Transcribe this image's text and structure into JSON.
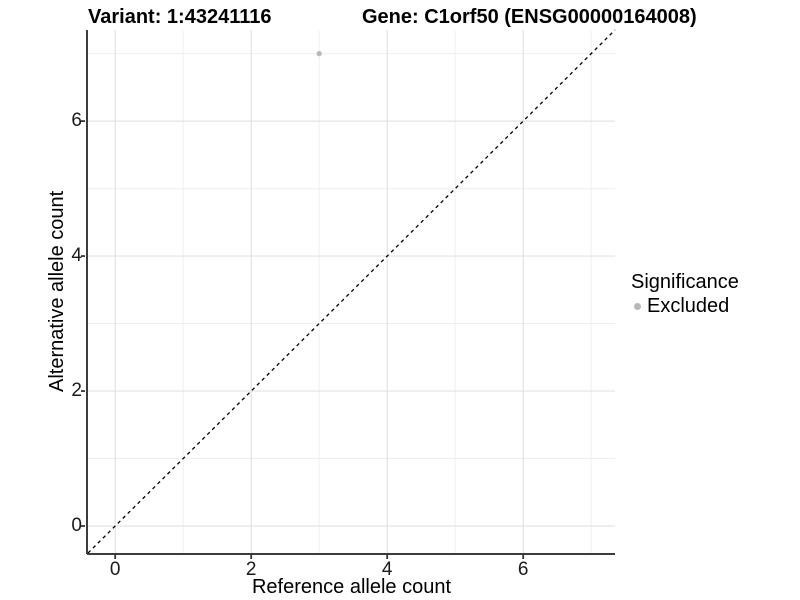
{
  "titles": {
    "variant": "Variant: 1:43241116",
    "gene": "Gene: C1orf50 (ENSG00000164008)"
  },
  "chart_data": {
    "type": "scatter",
    "title_left": "Variant: 1:43241116",
    "title_right": "Gene: C1orf50 (ENSG00000164008)",
    "xlabel": "Reference allele count",
    "ylabel": "Alternative allele count",
    "xlim": [
      -0.4,
      7.35
    ],
    "ylim": [
      -0.4,
      7.35
    ],
    "x_major_ticks": [
      0,
      2,
      4,
      6
    ],
    "y_major_ticks": [
      0,
      2,
      4,
      6
    ],
    "x_minor_ticks": [
      1,
      3,
      5,
      7
    ],
    "y_minor_ticks": [
      1,
      3,
      5,
      7
    ],
    "x_tick_labels": [
      "0",
      "2",
      "4",
      "6"
    ],
    "y_tick_labels": [
      "0",
      "2",
      "4",
      "6"
    ],
    "grid": true,
    "reference_line": {
      "kind": "identity",
      "style": "dashed",
      "color": "#000000"
    },
    "series": [
      {
        "name": "Excluded",
        "color": "#B8B8B8",
        "points": [
          {
            "x": 3,
            "y": 7
          }
        ]
      }
    ],
    "legend": {
      "title": "Significance",
      "position": "right",
      "items": [
        {
          "label": "Excluded",
          "color": "#B8B8B8"
        }
      ]
    },
    "colors": {
      "background": "#FFFFFF",
      "grid_major": "#E3E3E3",
      "grid_minor": "#EFEFEF",
      "axis_line": "#3C3C3C",
      "tick_mark": "#333333",
      "point": "#B8B8B8",
      "text": "#000000"
    }
  }
}
